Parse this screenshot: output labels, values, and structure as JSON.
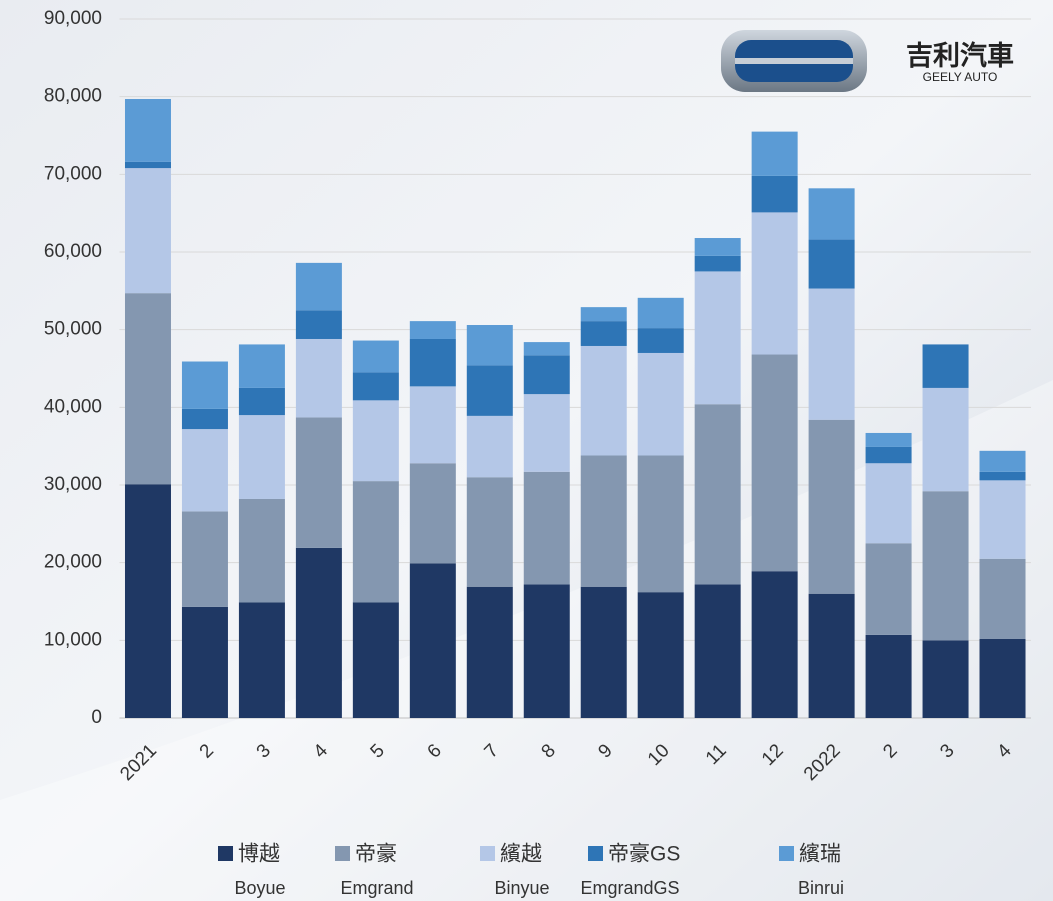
{
  "chart_data": {
    "type": "stacked_bar",
    "logo": {
      "name": "吉利汽車",
      "subname": "GEELY AUTO"
    },
    "categories": [
      "2021",
      "2",
      "3",
      "4",
      "5",
      "6",
      "7",
      "8",
      "9",
      "10",
      "11",
      "12",
      "2022",
      "2",
      "3",
      "4"
    ],
    "series": [
      {
        "name": "博越",
        "name_en": "Boyue",
        "color": "#1f3864",
        "values": [
          30100,
          14300,
          14900,
          21900,
          14900,
          19900,
          16900,
          17200,
          16900,
          16200,
          17200,
          18900,
          16000,
          10700,
          10000,
          10200
        ]
      },
      {
        "name": "帝豪",
        "name_en": "Emgrand",
        "color": "#8497b0",
        "values": [
          24600,
          12300,
          13300,
          16800,
          15600,
          12900,
          14100,
          14500,
          16900,
          17600,
          23200,
          27900,
          22400,
          11800,
          19200,
          10300
        ]
      },
      {
        "name": "繽越",
        "name_en": "Binyue",
        "color": "#b4c7e7",
        "values": [
          16100,
          10600,
          10800,
          10100,
          10400,
          9900,
          7900,
          10000,
          14100,
          13200,
          17100,
          18300,
          16900,
          10300,
          13300,
          10100
        ]
      },
      {
        "name": "帝豪GS",
        "name_en": "EmgrandGS",
        "color": "#2e75b6",
        "values": [
          800,
          2600,
          3500,
          3700,
          3600,
          6100,
          6500,
          5000,
          3200,
          3200,
          2000,
          4700,
          6300,
          2100,
          5600,
          1100
        ]
      },
      {
        "name": "繽瑞",
        "name_en": "Binrui",
        "color": "#5b9bd5",
        "values": [
          8100,
          6100,
          5600,
          6100,
          4100,
          2300,
          5200,
          1700,
          1800,
          3900,
          2300,
          5700,
          6600,
          1800,
          0,
          2700
        ]
      }
    ],
    "ylim": [
      0,
      90000
    ],
    "yticks": [
      0,
      {
        "value": 10000,
        "label": "10,000"
      },
      {
        "value": 20000,
        "label": "20,000"
      },
      {
        "value": 30000,
        "label": "30,000"
      },
      {
        "value": 40000,
        "label": "40,000"
      },
      {
        "value": 50000,
        "label": "50,000"
      },
      {
        "value": 60000,
        "label": "60,000"
      },
      {
        "value": 70000,
        "label": "70,000"
      },
      {
        "value": 80000,
        "label": "80,000"
      },
      {
        "value": 90000,
        "label": "90,000"
      }
    ],
    "grid": true,
    "legend": "bottom"
  }
}
